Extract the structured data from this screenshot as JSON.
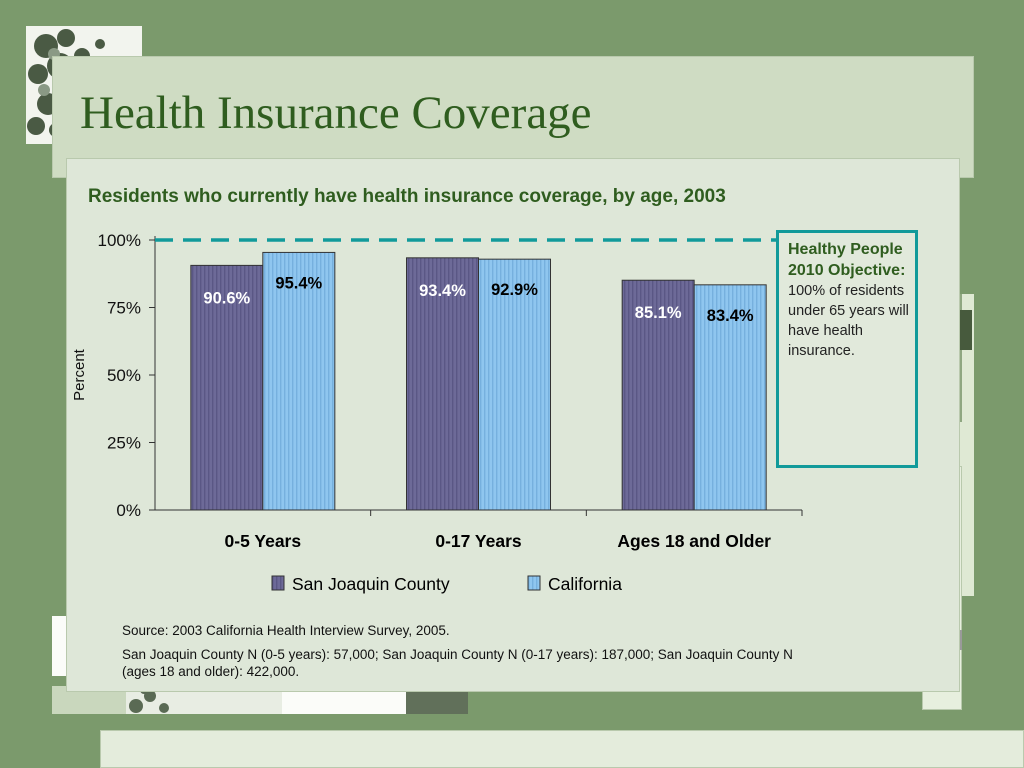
{
  "slide": {
    "title": "Health Insurance Coverage",
    "subtitle": "Residents who currently have health insurance coverage, by age, 2003"
  },
  "callout": {
    "heading": "Healthy People 2010 Objective:",
    "body": "100% of residents under 65 years will have health insurance."
  },
  "source": {
    "line1": "Source: 2003 California Health Interview Survey, 2005.",
    "line2": "San Joaquin County N (0-5 years): 57,000; San Joaquin County N (0-17 years): 187,000; San Joaquin County N (ages 18 and older): 422,000."
  },
  "colors": {
    "title": "#2f5d1f",
    "background": "#7b9a6c",
    "panel": "#dee7d8",
    "series_sjc": "#6d6a98",
    "series_ca": "#8fc6ef",
    "target_line": "#119a9a"
  },
  "chart_data": {
    "type": "bar",
    "categories": [
      "0-5 Years",
      "0-17 Years",
      "Ages 18 and Older"
    ],
    "series": [
      {
        "name": "San Joaquin County",
        "values": [
          90.6,
          93.4,
          85.1
        ],
        "labels": [
          "90.6%",
          "93.4%",
          "85.1%"
        ]
      },
      {
        "name": "California",
        "values": [
          95.4,
          92.9,
          83.4
        ],
        "labels": [
          "95.4%",
          "92.9%",
          "83.4%"
        ]
      }
    ],
    "ylabel": "Percent",
    "xlabel": "",
    "ylim": [
      0,
      100
    ],
    "yticks": [
      0,
      25,
      50,
      75,
      100
    ],
    "ytick_labels": [
      "0%",
      "25%",
      "50%",
      "75%",
      "100%"
    ],
    "reference_line": 100,
    "legend_position": "bottom",
    "grid": false
  }
}
